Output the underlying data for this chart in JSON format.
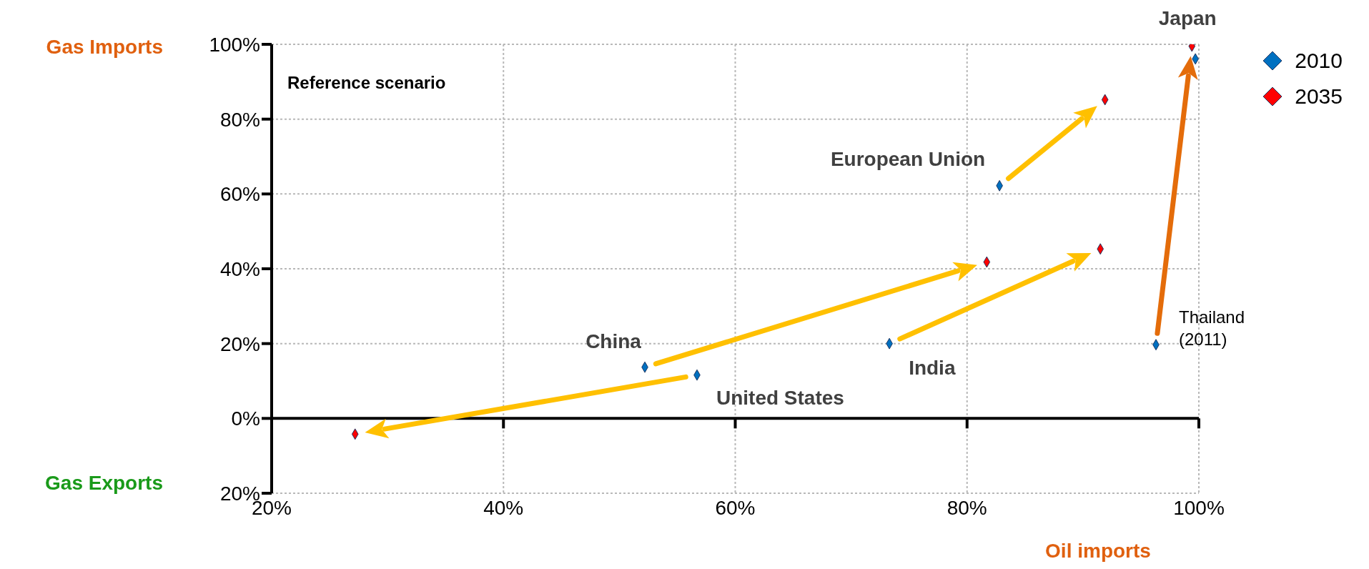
{
  "chart_data": {
    "type": "scatter",
    "ylabel": "Gas Imports",
    "xlabel": "Oil imports",
    "xlim": [
      20,
      100
    ],
    "xticks": [
      {
        "value": 20,
        "label": "20%"
      },
      {
        "value": 40,
        "label": "40%"
      },
      {
        "value": 60,
        "label": "60%"
      },
      {
        "value": 80,
        "label": "80%"
      },
      {
        "value": 100,
        "label": "100%"
      }
    ],
    "ylim": [
      -20,
      100
    ],
    "yticks": [
      {
        "value": -20,
        "label": "20%"
      },
      {
        "value": 0,
        "label": "0%"
      },
      {
        "value": 20,
        "label": "20%"
      },
      {
        "value": 40,
        "label": "40%"
      },
      {
        "value": 60,
        "label": "60%"
      },
      {
        "value": 80,
        "label": "80%"
      },
      {
        "value": 100,
        "label": "100%"
      }
    ],
    "series": [
      {
        "name": "2010",
        "color": "#0070c0",
        "x": [
          52.2,
          56.7,
          73.3,
          82.8,
          96.3,
          99.7
        ],
        "values": [
          13.7,
          11.6,
          20.0,
          62.2,
          19.7,
          96.1
        ]
      },
      {
        "name": "2035",
        "color": "#ff0000",
        "x": [
          81.7,
          27.2,
          91.5,
          91.9,
          99.4
        ],
        "values": [
          41.8,
          -4.2,
          45.3,
          85.2,
          99.5
        ]
      }
    ],
    "annotations": [
      "Reference scenario",
      "Gas Exports",
      {
        "text": "China",
        "x": 52.2,
        "y": 13.7
      },
      {
        "text": "United States",
        "x": 56.7,
        "y": 11.6
      },
      {
        "text": "India",
        "x": 73.3,
        "y": 20.0
      },
      {
        "text": "European Union",
        "x": 82.8,
        "y": 62.2
      },
      {
        "text": "Thailand\n(2011)",
        "x": 96.3,
        "y": 19.7
      },
      {
        "text": "Japan",
        "x": 99.4,
        "y": 99.5
      }
    ],
    "marker": "diamond",
    "grid": true,
    "legend": "top right"
  }
}
